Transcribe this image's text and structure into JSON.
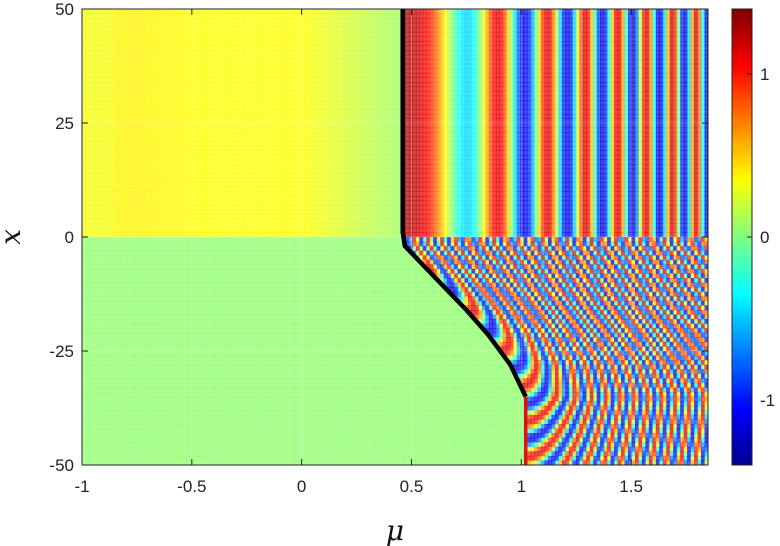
{
  "chart_data": {
    "type": "heatmap",
    "title": "",
    "xlabel": "μ",
    "ylabel": "x",
    "xlim": [
      -1,
      1.85
    ],
    "ylim": [
      -50,
      50
    ],
    "xticks": [
      -1,
      -0.5,
      0,
      0.5,
      1,
      1.5
    ],
    "xtick_labels": [
      "-1",
      "-0.5",
      "0",
      "0.5",
      "1",
      "1.5"
    ],
    "yticks": [
      -50,
      -25,
      0,
      25,
      50
    ],
    "ytick_labels": [
      "-50",
      "-25",
      "0",
      "25",
      "50"
    ],
    "colorbar": {
      "colormap": "jet",
      "range": [
        -1.4,
        1.4
      ],
      "ticks": [
        -1,
        0,
        1
      ],
      "tick_labels": [
        "-1",
        "0",
        "1"
      ]
    },
    "grid": true,
    "background_value_left": 0.2,
    "background_value_bottom": 0.05,
    "curves": [
      {
        "name": "",
        "color": "#000000",
        "points": [
          [
            0.46,
            50
          ],
          [
            0.46,
            1
          ],
          [
            0.47,
            -2
          ],
          [
            0.55,
            -6
          ],
          [
            0.65,
            -11
          ],
          [
            0.75,
            -16
          ],
          [
            0.85,
            -21.5
          ],
          [
            0.95,
            -28
          ],
          [
            1.02,
            -35
          ]
        ]
      },
      {
        "name": "",
        "color": "#e01010",
        "points": [
          [
            1.02,
            -35
          ],
          [
            1.02,
            -50
          ]
        ]
      }
    ]
  }
}
